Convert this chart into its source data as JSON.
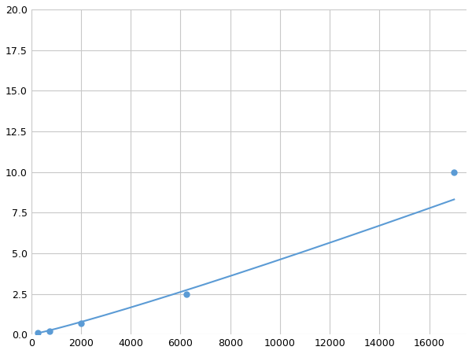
{
  "x_points": [
    250,
    750,
    2000,
    6250,
    17000
  ],
  "y_points": [
    0.1,
    0.2,
    0.7,
    2.5,
    10.0
  ],
  "line_color": "#5b9bd5",
  "marker_color": "#5b9bd5",
  "marker_size": 5,
  "line_width": 1.5,
  "xlim": [
    0,
    17500
  ],
  "ylim": [
    0,
    20.0
  ],
  "xticks": [
    0,
    2000,
    4000,
    6000,
    8000,
    10000,
    12000,
    14000,
    16000
  ],
  "yticks": [
    0.0,
    2.5,
    5.0,
    7.5,
    10.0,
    12.5,
    15.0,
    17.5,
    20.0
  ],
  "grid_color": "#c8c8c8",
  "background_color": "#ffffff",
  "tick_label_fontsize": 9,
  "figsize": [
    6.0,
    4.5
  ],
  "dpi": 100
}
